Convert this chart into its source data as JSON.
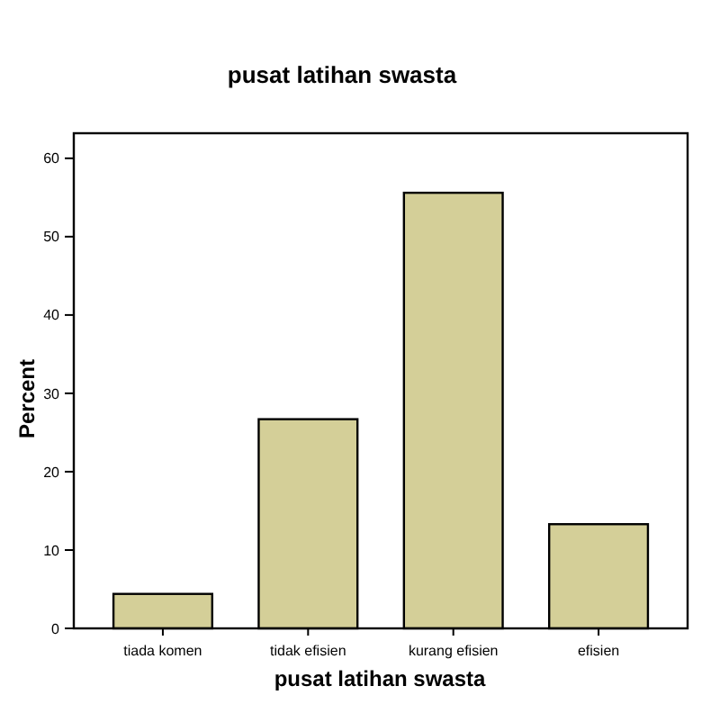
{
  "chart_data": {
    "type": "bar",
    "title": "pusat latihan swasta",
    "xlabel": "pusat latihan swasta",
    "ylabel": "Percent",
    "categories": [
      "tiada komen",
      "tidak efisien",
      "kurang efisien",
      "efisien"
    ],
    "values": [
      4.4,
      26.7,
      55.6,
      13.3
    ],
    "color": "#d4cf98",
    "ylim": [
      0,
      63.2
    ],
    "yticks": [
      0,
      10,
      20,
      30,
      40,
      50,
      60
    ],
    "grid": false
  }
}
